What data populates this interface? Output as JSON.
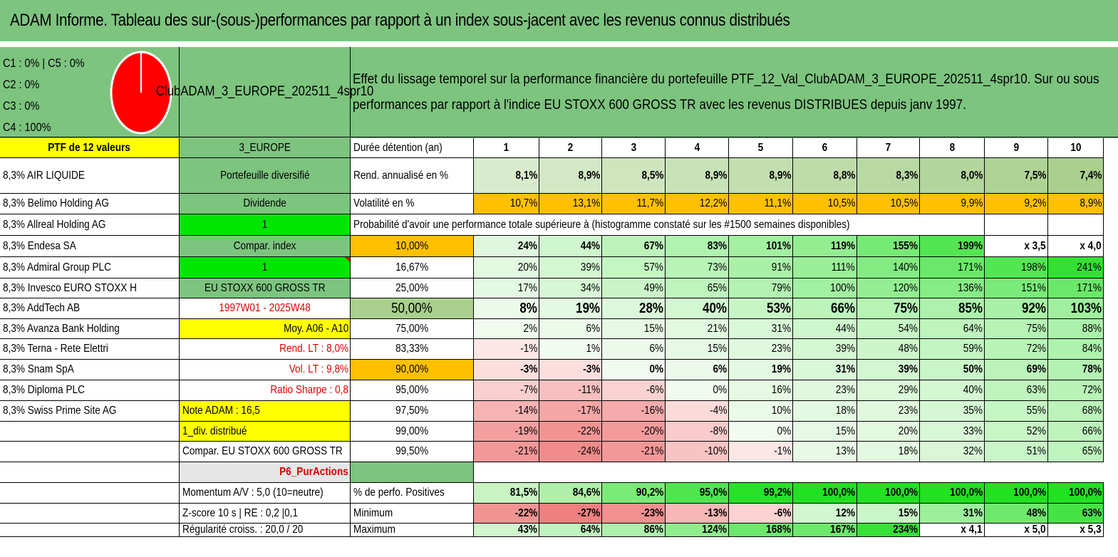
{
  "title": "ADAM Informe. Tableau des sur-(sous-)performances par rapport à un index sous-jacent avec les revenus connus distribués",
  "categories": [
    "C1 : 0% | C5 : 0%",
    "C2 : 0%",
    "C3 : 0%",
    "C4 : 100%"
  ],
  "portfolio_name": "ClubADAM_3_EUROPE_202511_4spr10",
  "description": "Effet du lissage temporel sur la performance financière du portefeuille PTF_12_Val_ClubADAM_3_EUROPE_202511_4spr10. Sur ou sous performances par rapport à l'indice EU STOXX 600 GROSS TR avec les revenus DISTRIBUES depuis janv 1997.",
  "colors": {
    "header_green": "#7dc47f",
    "yellow": "#ffff00",
    "lime": "#00e600",
    "orange": "#ffc000",
    "red": "#e00000",
    "pie_red": "#ff0000"
  },
  "holdings_header": "PTF de 12 valeurs",
  "holdings": [
    "8,3% AIR LIQUIDE",
    "8,3% Belimo Holding AG",
    "8,3% Allreal Holding AG",
    "8,3% Endesa SA",
    "8,3% Admiral Group PLC",
    "8,3% Invesco EURO STOXX H",
    "8,3% AddTech AB",
    "8,3% Avanza Bank Holding",
    "8,3% Terna - Rete Elettri",
    "8,3% Snam SpA",
    "8,3% Diploma PLC",
    "8,3% Swiss Prime Site AG"
  ],
  "info": {
    "region": "3_EUROPE",
    "type": "Portefeuille diversifié",
    "dividend": "Dividende",
    "dividend_val": "1",
    "compar_index": "Compar. index",
    "compar_val": "1",
    "index_name": "EU STOXX 600 GROSS TR",
    "period": "1997W01 - 2025W48",
    "moy": "Moy. A06 - A10",
    "rend_lt": "Rend. LT : 8,0%",
    "vol_lt": "Vol. LT : 9,8%",
    "sharpe": "Ratio Sharpe : 0,8",
    "note": "Note ADAM : 16,5",
    "div": "1_div. distribué",
    "compar_full": "Compar. EU STOXX 600 GROSS TR",
    "strategy": "P6_PurActions",
    "momentum": "Momentum A/V : 5,0 (10=neutre)",
    "zscore": "Z-score 10 s | RE : 0,2 |0,1",
    "regularite": "Régularité croiss. : 20,0 / 20"
  },
  "durations_label": "Durée détention (an)",
  "durations": [
    "1",
    "2",
    "3",
    "4",
    "5",
    "6",
    "7",
    "8",
    "9",
    "10"
  ],
  "rend_label": "Rend. annualisé en %",
  "rend": [
    "8,1%",
    "8,9%",
    "8,5%",
    "8,9%",
    "8,9%",
    "8,8%",
    "8,3%",
    "8,0%",
    "7,5%",
    "7,4%"
  ],
  "vol_label": "Volatilité en %",
  "vol": [
    "10,7%",
    "13,1%",
    "11,7%",
    "12,2%",
    "11,1%",
    "10,5%",
    "10,5%",
    "9,9%",
    "9,2%",
    "8,9%"
  ],
  "prob_title": "Probabilité d'avoir une performance totale supérieure à (histogramme constaté sur les #1500 semaines disponibles)",
  "prob_rows": [
    {
      "p": "10,00%",
      "v": [
        "24%",
        "44%",
        "67%",
        "83%",
        "101%",
        "119%",
        "155%",
        "199%",
        "x 3,5",
        "x 4,0"
      ]
    },
    {
      "p": "16,67%",
      "v": [
        "20%",
        "39%",
        "57%",
        "73%",
        "91%",
        "111%",
        "140%",
        "171%",
        "198%",
        "241%"
      ]
    },
    {
      "p": "25,00%",
      "v": [
        "17%",
        "34%",
        "49%",
        "65%",
        "79%",
        "100%",
        "120%",
        "136%",
        "151%",
        "171%"
      ]
    },
    {
      "p": "50,00%",
      "v": [
        "8%",
        "19%",
        "28%",
        "40%",
        "53%",
        "66%",
        "75%",
        "85%",
        "92%",
        "103%"
      ]
    },
    {
      "p": "75,00%",
      "v": [
        "2%",
        "6%",
        "15%",
        "21%",
        "31%",
        "44%",
        "54%",
        "64%",
        "75%",
        "88%"
      ]
    },
    {
      "p": "83,33%",
      "v": [
        "-1%",
        "1%",
        "6%",
        "15%",
        "23%",
        "39%",
        "48%",
        "59%",
        "72%",
        "84%"
      ]
    },
    {
      "p": "90,00%",
      "v": [
        "-3%",
        "-3%",
        "0%",
        "6%",
        "19%",
        "31%",
        "39%",
        "50%",
        "69%",
        "78%"
      ]
    },
    {
      "p": "95,00%",
      "v": [
        "-7%",
        "-11%",
        "-6%",
        "0%",
        "16%",
        "23%",
        "29%",
        "40%",
        "63%",
        "72%"
      ]
    },
    {
      "p": "97,50%",
      "v": [
        "-14%",
        "-17%",
        "-16%",
        "-4%",
        "10%",
        "18%",
        "23%",
        "35%",
        "55%",
        "68%"
      ]
    },
    {
      "p": "99,00%",
      "v": [
        "-19%",
        "-22%",
        "-20%",
        "-8%",
        "0%",
        "15%",
        "20%",
        "33%",
        "52%",
        "66%"
      ]
    },
    {
      "p": "99,50%",
      "v": [
        "-21%",
        "-24%",
        "-21%",
        "-10%",
        "-1%",
        "13%",
        "18%",
        "32%",
        "51%",
        "65%"
      ]
    }
  ],
  "pos_label": "% de perfo. Positives",
  "pos": [
    "81,5%",
    "84,6%",
    "90,2%",
    "95,0%",
    "99,2%",
    "100,0%",
    "100,0%",
    "100,0%",
    "100,0%",
    "100,0%"
  ],
  "min_label": "Minimum",
  "min": [
    "-22%",
    "-27%",
    "-23%",
    "-13%",
    "-6%",
    "12%",
    "15%",
    "31%",
    "48%",
    "63%"
  ],
  "max_label": "Maximum",
  "max": [
    "43%",
    "64%",
    "86%",
    "124%",
    "168%",
    "167%",
    "234%",
    "x 4,1",
    "x 5,0",
    "x 5,3"
  ]
}
